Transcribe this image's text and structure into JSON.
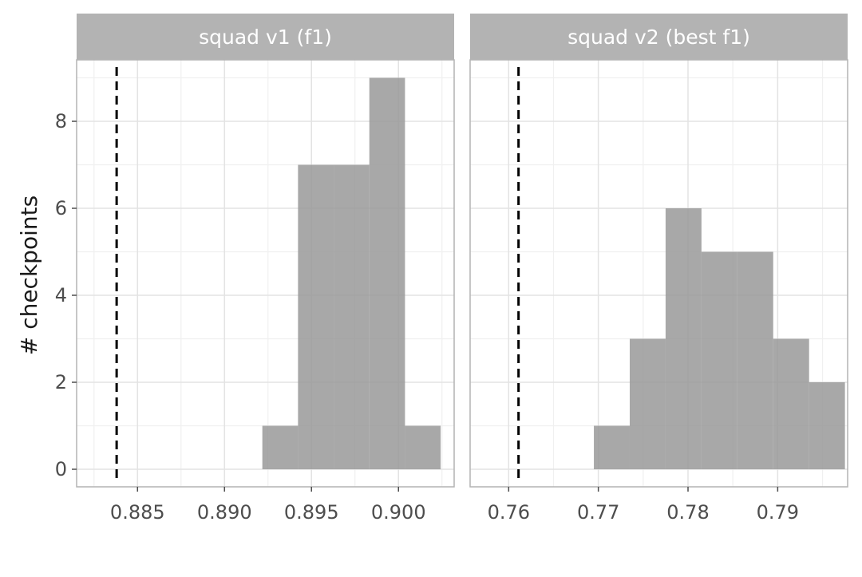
{
  "chart_data": {
    "type": "bar",
    "ylabel": "# checkpoints",
    "xlabel": "",
    "ylim": [
      0,
      9.5
    ],
    "y_ticks": [
      0,
      2,
      4,
      6,
      8
    ],
    "y_tick_labels": [
      "0",
      "2",
      "4",
      "6",
      "8"
    ],
    "grid": true,
    "colors": {
      "bar_fill": "#999999",
      "strip_fill": "#b3b3b3",
      "reference_line": "#000000",
      "grid_major": "#e3e3e3",
      "grid_minor": "#f0f0f0",
      "panel_border": "#b3b3b3"
    },
    "panels": [
      {
        "title": "squad v1 (f1)",
        "xlim": [
          0.8815,
          0.9032
        ],
        "x_ticks": [
          0.885,
          0.89,
          0.895,
          0.9
        ],
        "x_tick_labels": [
          "0.885",
          "0.890",
          "0.895",
          "0.900"
        ],
        "x_minor_ticks": [
          0.8825,
          0.8875,
          0.8925,
          0.8975,
          0.9025
        ],
        "reference_x": 0.8838,
        "bin_width": 0.00205,
        "bin_centers": [
          0.8932,
          0.89525,
          0.8973,
          0.89935,
          0.9014
        ],
        "counts": [
          1,
          7,
          7,
          9,
          1
        ]
      },
      {
        "title": "squad v2 (best f1)",
        "xlim": [
          0.7557,
          0.7978
        ],
        "x_ticks": [
          0.76,
          0.77,
          0.78,
          0.79
        ],
        "x_tick_labels": [
          "0.76",
          "0.77",
          "0.78",
          "0.79"
        ],
        "x_minor_ticks": [
          0.765,
          0.775,
          0.785,
          0.795
        ],
        "reference_x": 0.7611,
        "bin_width": 0.004,
        "bin_centers": [
          0.7715,
          0.7755,
          0.7795,
          0.7835,
          0.7875,
          0.7915,
          0.7955
        ],
        "counts": [
          1,
          3,
          6,
          5,
          5,
          3,
          2
        ]
      }
    ]
  }
}
